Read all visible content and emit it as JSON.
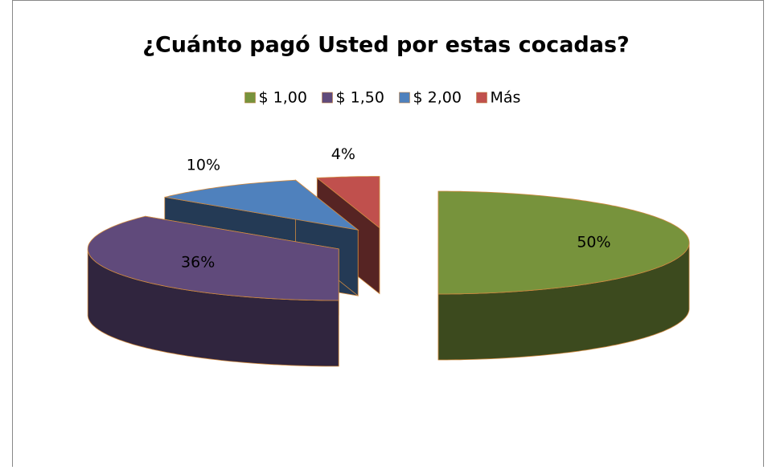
{
  "chart_data": {
    "type": "pie",
    "title": "¿Cuánto pagó Usted por estas cocadas?",
    "categories": [
      "$ 1,00",
      "$ 1,50",
      "$ 2,00",
      "Más"
    ],
    "values": [
      50,
      36,
      10,
      4
    ],
    "value_labels": [
      "50%",
      "36%",
      "10%",
      "4%"
    ],
    "colors": [
      "#77933c",
      "#604a7b",
      "#4f81bd",
      "#c0504d"
    ],
    "legend": "top"
  }
}
